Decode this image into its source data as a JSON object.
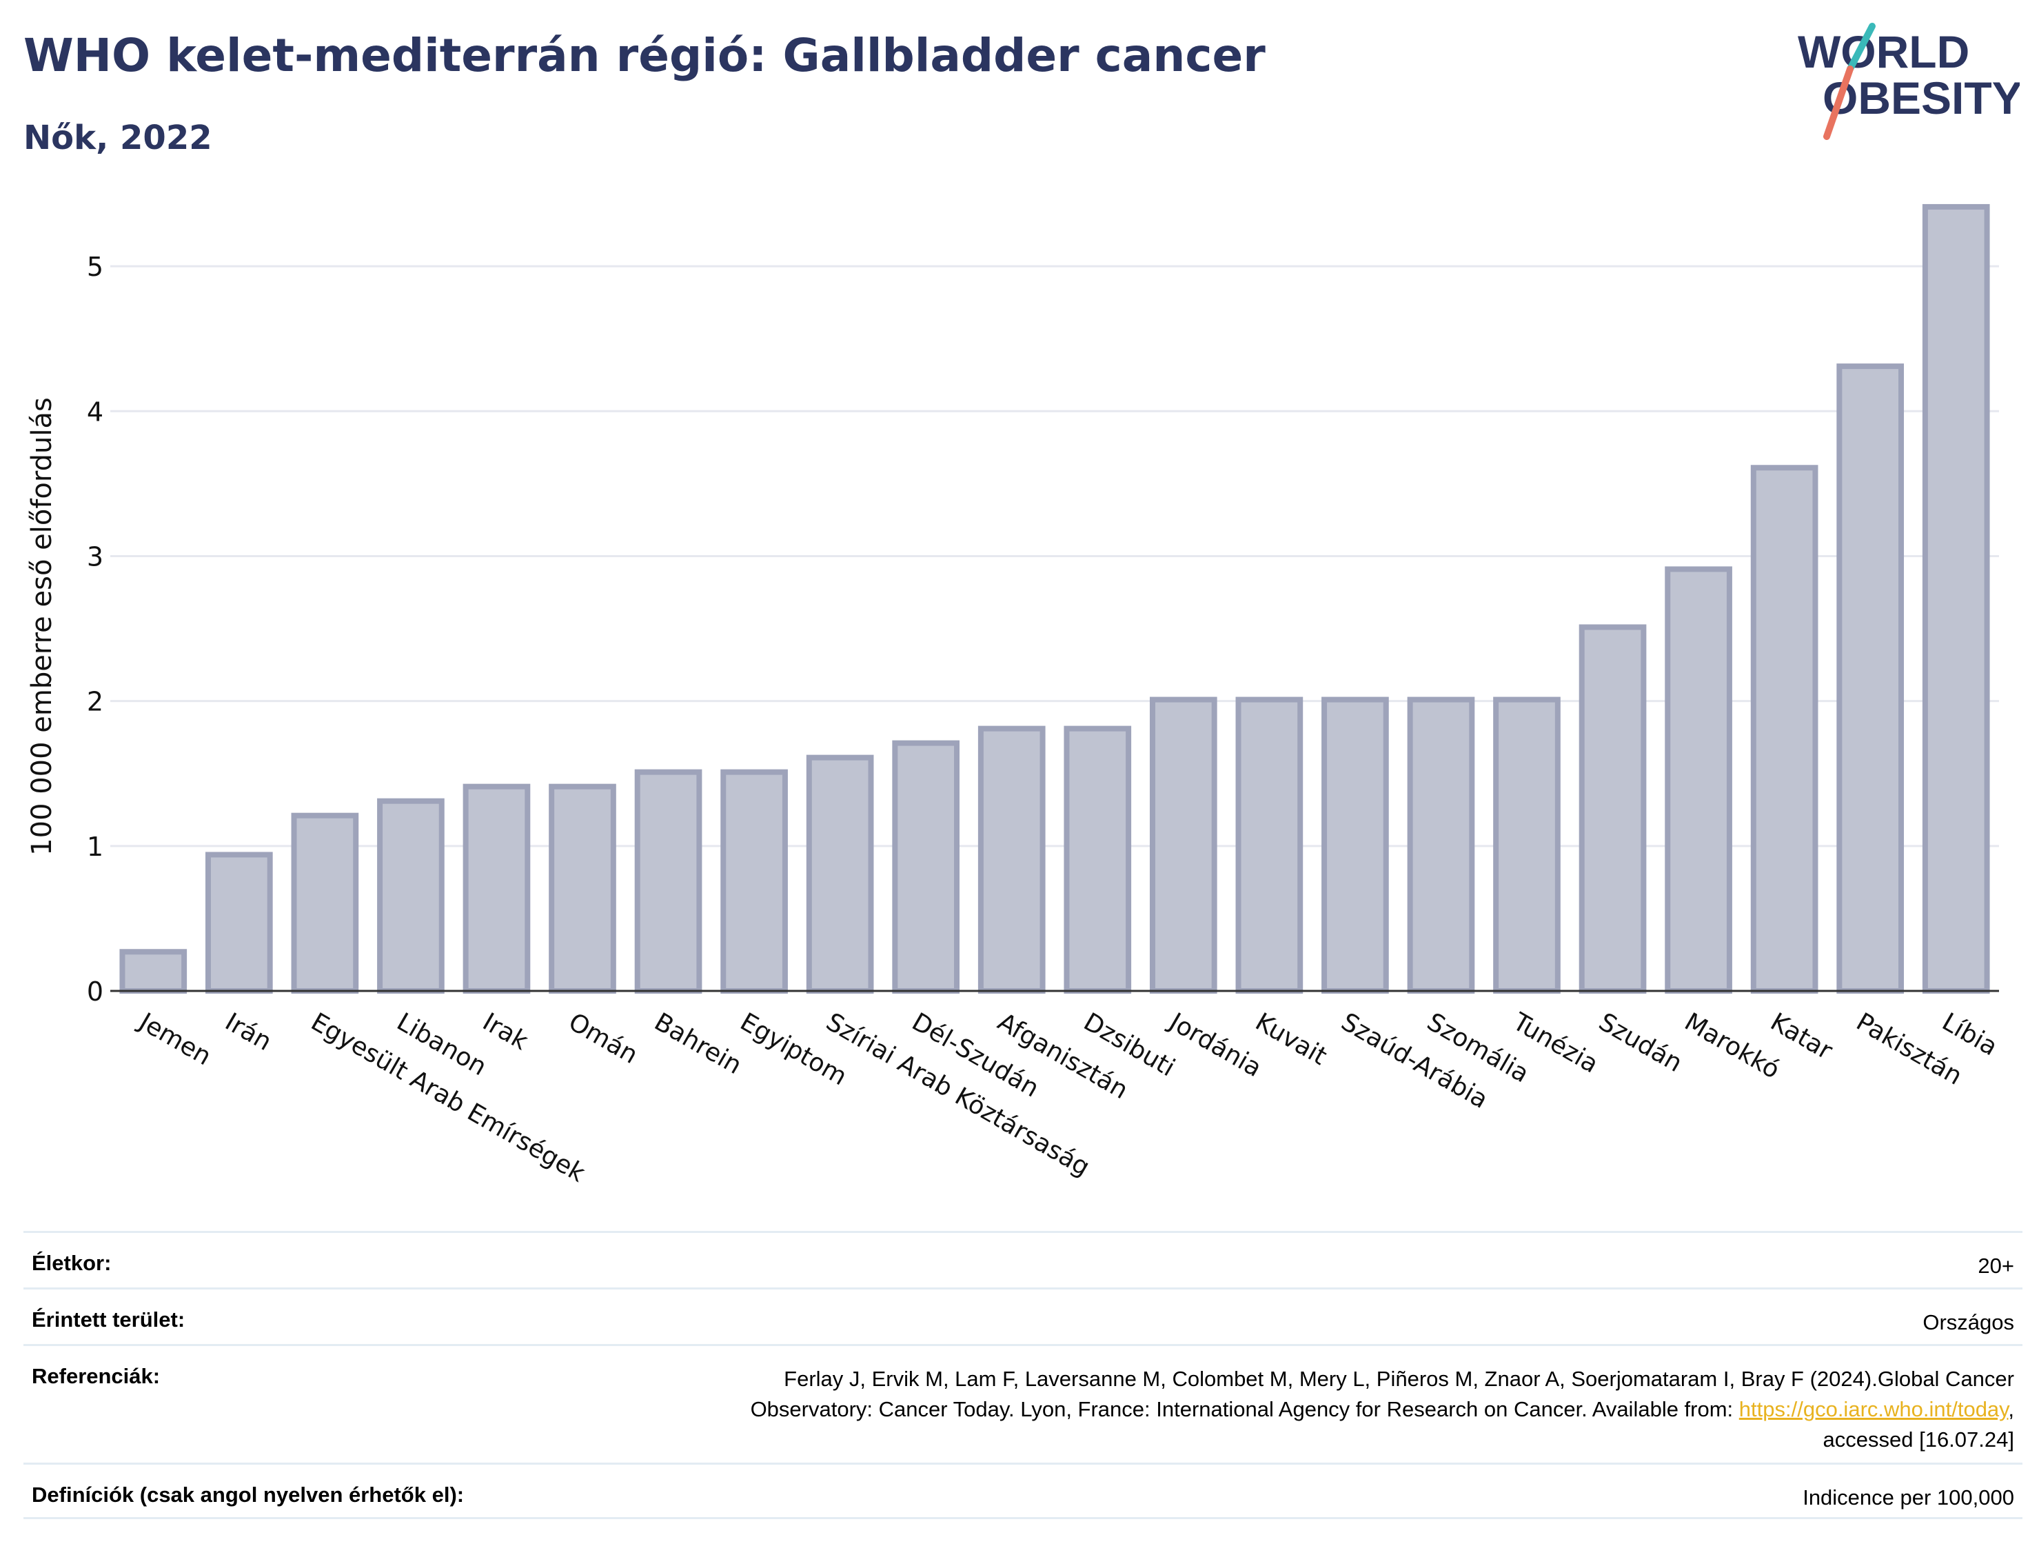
{
  "header": {
    "title": "WHO kelet-mediterrán régió: Gallbladder cancer",
    "subtitle": "Nők, 2022"
  },
  "logo": {
    "line1": "WORLD",
    "line2": "OBESITY",
    "colors": {
      "text": "#2b3560",
      "stroke_top": "#3ab9b9",
      "stroke_bottom": "#e8735f"
    }
  },
  "chart_data": {
    "type": "bar",
    "title": "WHO kelet-mediterrán régió: Gallbladder cancer",
    "subtitle": "Nők, 2022",
    "xlabel": "",
    "ylabel": "100 000 emberre eső előfordulás",
    "ylim": [
      0,
      5.6
    ],
    "yticks": [
      0,
      1,
      2,
      3,
      4,
      5
    ],
    "grid": true,
    "legend": "none",
    "bar_fill": "#bfc3d1",
    "bar_stroke": "#9ea3ba",
    "categories": [
      "Jemen",
      "Irán",
      "Egyesült Arab Emírségek",
      "Libanon",
      "Irak",
      "Omán",
      "Bahrein",
      "Egyiptom",
      "Szíriai Arab Köztársaság",
      "Dél-Szudán",
      "Afganisztán",
      "Dzsibuti",
      "Jordánia",
      "Kuvait",
      "Szaúd-Arábia",
      "Szomália",
      "Tunézia",
      "Szudán",
      "Marokkó",
      "Katar",
      "Pakisztán",
      "Líbia"
    ],
    "values": [
      0.27,
      0.94,
      1.21,
      1.31,
      1.41,
      1.41,
      1.51,
      1.51,
      1.61,
      1.71,
      1.81,
      1.81,
      2.01,
      2.01,
      2.01,
      2.01,
      2.01,
      2.51,
      2.91,
      3.61,
      4.31,
      5.41
    ]
  },
  "meta": {
    "age_label": "Életkor:",
    "age_value": "20+",
    "area_label": "Érintett terület:",
    "area_value": "Országos",
    "ref_label": "Referenciák:",
    "ref_line1": "Ferlay J, Ervik M, Lam F, Laversanne M, Colombet M, Mery L, Piñeros M, Znaor A, Soerjomataram I, Bray F (2024).Global Cancer",
    "ref_line2_before": "Observatory: Cancer Today. Lyon, France: International Agency for Research on Cancer. Available from: ",
    "ref_link": "https://gco.iarc.who.int/today",
    "ref_line2_after": ",",
    "ref_line3": "accessed [16.07.24]",
    "def_label": "Definíciók (csak angol nyelven érhetők el):",
    "def_value": "Indicence per 100,000"
  }
}
